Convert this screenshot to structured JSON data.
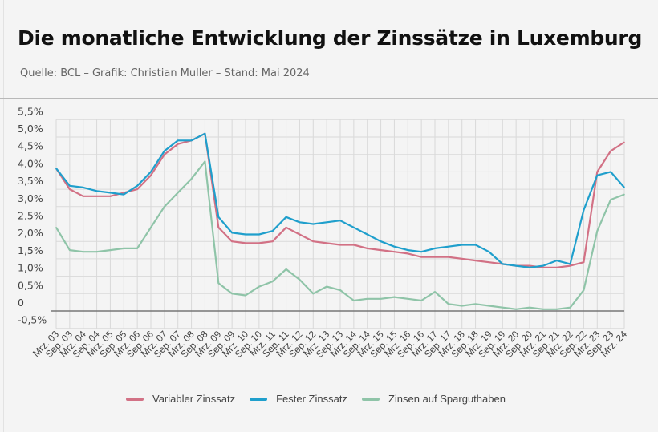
{
  "header": {
    "title": "Die monatliche Entwicklung der Zinssätze in Luxemburg",
    "subtitle": "Quelle: BCL – Grafik: Christian Muller – Stand: Mai 2024"
  },
  "chart_data": {
    "type": "line",
    "title": "Die monatliche Entwicklung der Zinssätze in Luxemburg",
    "xlabel": "",
    "ylabel": "",
    "ylim": [
      -0.5,
      5.5
    ],
    "grid": true,
    "legend": "bottom",
    "y_ticks": [
      "-0,5%",
      "0",
      "0,5%",
      "1,0%",
      "1,5%",
      "2,0%",
      "2,5%",
      "3,0%",
      "3,5%",
      "4,0%",
      "4,5%",
      "5,0%",
      "5,5%"
    ],
    "y_tick_values": [
      -0.5,
      0,
      0.5,
      1.0,
      1.5,
      2.0,
      2.5,
      3.0,
      3.5,
      4.0,
      4.5,
      5.0,
      5.5
    ],
    "categories": [
      "Mrz. 03",
      "Sep. 03",
      "Mrz. 04",
      "Sep. 04",
      "Mrz. 05",
      "Sep. 05",
      "Mrz. 06",
      "Sep. 06",
      "Mrz. 07",
      "Sep. 07",
      "Mrz. 08",
      "Sep. 08",
      "Mrz. 09",
      "Sep. 09",
      "Mrz. 10",
      "Sep. 10",
      "Mrz. 11",
      "Sep. 11",
      "Mrz. 12",
      "Sep. 12",
      "Mrz. 13",
      "Sep. 13",
      "Mrz. 14",
      "Sep. 14",
      "Mrz. 15",
      "Sep. 15",
      "Mrz. 16",
      "Sep. 16",
      "Mrz. 17",
      "Sep. 17",
      "Mrz. 18",
      "Sep. 18",
      "Mrz. 19",
      "Sep. 19",
      "Mrz. 20",
      "Sep. 20",
      "Mrz. 21",
      "Sep. 21",
      "Mrz. 22",
      "Sep. 22",
      "Mrz. 23",
      "Sep. 23",
      "Mrz. 24"
    ],
    "series": [
      {
        "name": "Variabler Zinssatz",
        "color": "#d27185",
        "values": [
          4.1,
          3.5,
          3.3,
          3.3,
          3.3,
          3.4,
          3.5,
          3.9,
          4.5,
          4.8,
          4.9,
          5.1,
          2.4,
          2.0,
          1.95,
          1.95,
          2.0,
          2.4,
          2.2,
          2.0,
          1.95,
          1.9,
          1.9,
          1.8,
          1.75,
          1.7,
          1.65,
          1.55,
          1.55,
          1.55,
          1.5,
          1.45,
          1.4,
          1.35,
          1.3,
          1.3,
          1.25,
          1.25,
          1.3,
          1.4,
          4.0,
          4.6,
          4.85
        ]
      },
      {
        "name": "Fester Zinssatz",
        "color": "#1f9fcc",
        "values": [
          4.1,
          3.6,
          3.55,
          3.45,
          3.4,
          3.35,
          3.6,
          4.0,
          4.6,
          4.9,
          4.9,
          5.1,
          2.7,
          2.25,
          2.2,
          2.2,
          2.3,
          2.7,
          2.55,
          2.5,
          2.55,
          2.6,
          2.4,
          2.2,
          2.0,
          1.85,
          1.75,
          1.7,
          1.8,
          1.85,
          1.9,
          1.9,
          1.7,
          1.35,
          1.3,
          1.25,
          1.3,
          1.45,
          1.35,
          2.9,
          3.9,
          4.0,
          3.55
        ]
      },
      {
        "name": "Zinsen auf Sparguthaben",
        "color": "#8fc4a8",
        "values": [
          2.4,
          1.75,
          1.7,
          1.7,
          1.75,
          1.8,
          1.8,
          2.4,
          3.0,
          3.4,
          3.8,
          4.3,
          0.8,
          0.5,
          0.45,
          0.7,
          0.85,
          1.2,
          0.9,
          0.5,
          0.7,
          0.6,
          0.3,
          0.35,
          0.35,
          0.4,
          0.35,
          0.3,
          0.55,
          0.2,
          0.15,
          0.2,
          0.15,
          0.1,
          0.05,
          0.1,
          0.05,
          0.05,
          0.1,
          0.6,
          2.3,
          3.2,
          3.35
        ]
      }
    ]
  }
}
